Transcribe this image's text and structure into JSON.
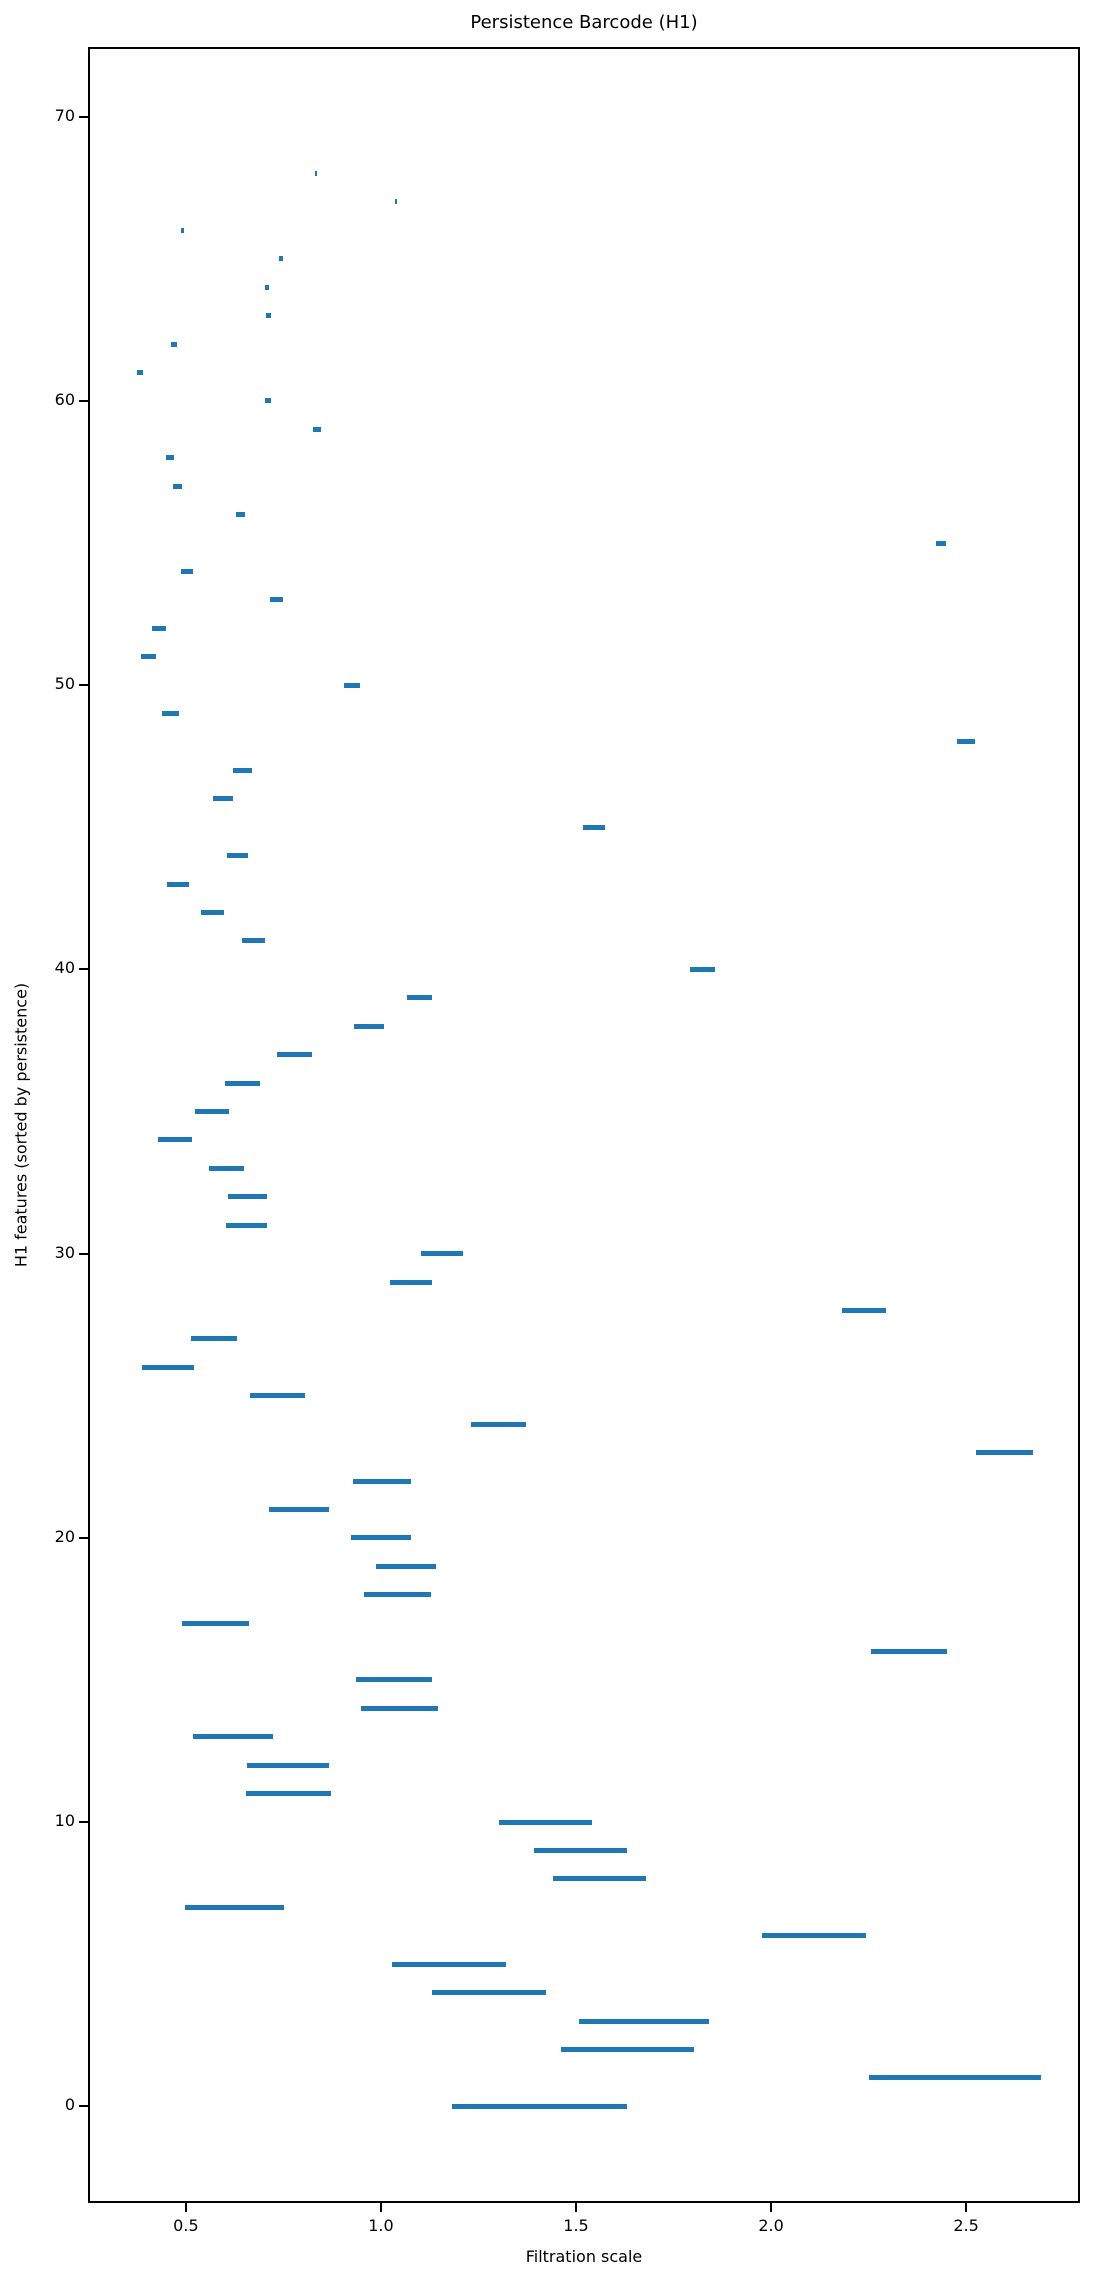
{
  "colors": {
    "bar": "#1f77b4",
    "spine": "#000000",
    "background": "#ffffff",
    "text": "#000000"
  },
  "chart_data": {
    "type": "bar",
    "orientation": "horizontal",
    "title": "Persistence Barcode (H1)",
    "xlabel": "Filtration scale",
    "ylabel": "H1 features (sorted by persistence)",
    "grid": false,
    "legend": null,
    "xlim": [
      0.249,
      2.792
    ],
    "ylim": [
      -3.4,
      72.45
    ],
    "x_ticks": [
      0.5,
      1.0,
      1.5,
      2.0,
      2.5
    ],
    "x_tick_labels": [
      "0.5",
      "1.0",
      "1.5",
      "2.0",
      "2.5"
    ],
    "y_ticks": [
      0,
      10,
      20,
      30,
      40,
      50,
      60,
      70
    ],
    "y_tick_labels": [
      "0",
      "10",
      "20",
      "30",
      "40",
      "50",
      "60",
      "70"
    ],
    "bars": [
      {
        "feature": 0,
        "birth": 1.182,
        "death": 1.632
      },
      {
        "feature": 1,
        "birth": 2.251,
        "death": 2.692
      },
      {
        "feature": 2,
        "birth": 1.462,
        "death": 1.803
      },
      {
        "feature": 3,
        "birth": 1.508,
        "death": 1.842
      },
      {
        "feature": 4,
        "birth": 1.131,
        "death": 1.423
      },
      {
        "feature": 5,
        "birth": 1.028,
        "death": 1.32
      },
      {
        "feature": 6,
        "birth": 1.977,
        "death": 2.243
      },
      {
        "feature": 7,
        "birth": 0.497,
        "death": 0.751
      },
      {
        "feature": 8,
        "birth": 1.441,
        "death": 1.679
      },
      {
        "feature": 9,
        "birth": 1.392,
        "death": 1.63
      },
      {
        "feature": 10,
        "birth": 1.303,
        "death": 1.541
      },
      {
        "feature": 11,
        "birth": 0.654,
        "death": 0.873
      },
      {
        "feature": 12,
        "birth": 0.656,
        "death": 0.868
      },
      {
        "feature": 13,
        "birth": 0.518,
        "death": 0.722
      },
      {
        "feature": 14,
        "birth": 0.949,
        "death": 1.146
      },
      {
        "feature": 15,
        "birth": 0.936,
        "death": 1.132
      },
      {
        "feature": 16,
        "birth": 2.256,
        "death": 2.45
      },
      {
        "feature": 17,
        "birth": 0.49,
        "death": 0.662
      },
      {
        "feature": 18,
        "birth": 0.956,
        "death": 1.128
      },
      {
        "feature": 19,
        "birth": 0.987,
        "death": 1.141
      },
      {
        "feature": 20,
        "birth": 0.923,
        "death": 1.076
      },
      {
        "feature": 21,
        "birth": 0.713,
        "death": 0.866
      },
      {
        "feature": 22,
        "birth": 0.928,
        "death": 1.078
      },
      {
        "feature": 23,
        "birth": 2.526,
        "death": 2.672
      },
      {
        "feature": 24,
        "birth": 1.231,
        "death": 1.372
      },
      {
        "feature": 25,
        "birth": 0.664,
        "death": 0.805
      },
      {
        "feature": 26,
        "birth": 0.387,
        "death": 0.521
      },
      {
        "feature": 27,
        "birth": 0.513,
        "death": 0.631
      },
      {
        "feature": 28,
        "birth": 2.182,
        "death": 2.295
      },
      {
        "feature": 29,
        "birth": 1.022,
        "death": 1.132
      },
      {
        "feature": 30,
        "birth": 1.103,
        "death": 1.21
      },
      {
        "feature": 31,
        "birth": 0.604,
        "death": 0.708
      },
      {
        "feature": 32,
        "birth": 0.609,
        "death": 0.707
      },
      {
        "feature": 33,
        "birth": 0.559,
        "death": 0.648
      },
      {
        "feature": 34,
        "birth": 0.428,
        "death": 0.515
      },
      {
        "feature": 35,
        "birth": 0.523,
        "death": 0.61
      },
      {
        "feature": 36,
        "birth": 0.599,
        "death": 0.69
      },
      {
        "feature": 37,
        "birth": 0.734,
        "death": 0.824
      },
      {
        "feature": 38,
        "birth": 0.931,
        "death": 1.008
      },
      {
        "feature": 39,
        "birth": 1.067,
        "death": 1.131
      },
      {
        "feature": 40,
        "birth": 1.792,
        "death": 1.857
      },
      {
        "feature": 41,
        "birth": 0.644,
        "death": 0.704
      },
      {
        "feature": 42,
        "birth": 0.538,
        "death": 0.597
      },
      {
        "feature": 43,
        "birth": 0.451,
        "death": 0.508
      },
      {
        "feature": 44,
        "birth": 0.605,
        "death": 0.66
      },
      {
        "feature": 45,
        "birth": 1.517,
        "death": 1.574
      },
      {
        "feature": 46,
        "birth": 0.569,
        "death": 0.62
      },
      {
        "feature": 47,
        "birth": 0.621,
        "death": 0.669
      },
      {
        "feature": 48,
        "birth": 2.477,
        "death": 2.523
      },
      {
        "feature": 49,
        "birth": 0.438,
        "death": 0.482
      },
      {
        "feature": 50,
        "birth": 0.905,
        "death": 0.946
      },
      {
        "feature": 51,
        "birth": 0.385,
        "death": 0.423
      },
      {
        "feature": 52,
        "birth": 0.413,
        "death": 0.449
      },
      {
        "feature": 53,
        "birth": 0.715,
        "death": 0.749
      },
      {
        "feature": 54,
        "birth": 0.487,
        "death": 0.518
      },
      {
        "feature": 55,
        "birth": 2.424,
        "death": 2.448
      },
      {
        "feature": 56,
        "birth": 0.629,
        "death": 0.651
      },
      {
        "feature": 57,
        "birth": 0.467,
        "death": 0.489
      },
      {
        "feature": 58,
        "birth": 0.449,
        "death": 0.47
      },
      {
        "feature": 59,
        "birth": 0.827,
        "death": 0.846
      },
      {
        "feature": 60,
        "birth": 0.702,
        "death": 0.719
      },
      {
        "feature": 61,
        "birth": 0.374,
        "death": 0.39
      },
      {
        "feature": 62,
        "birth": 0.463,
        "death": 0.477
      },
      {
        "feature": 63,
        "birth": 0.705,
        "death": 0.717
      },
      {
        "feature": 64,
        "birth": 0.702,
        "death": 0.712
      },
      {
        "feature": 65,
        "birth": 0.739,
        "death": 0.748
      },
      {
        "feature": 66,
        "birth": 0.487,
        "death": 0.494
      },
      {
        "feature": 67,
        "birth": 1.036,
        "death": 1.042
      },
      {
        "feature": 68,
        "birth": 0.831,
        "death": 0.836
      }
    ]
  }
}
